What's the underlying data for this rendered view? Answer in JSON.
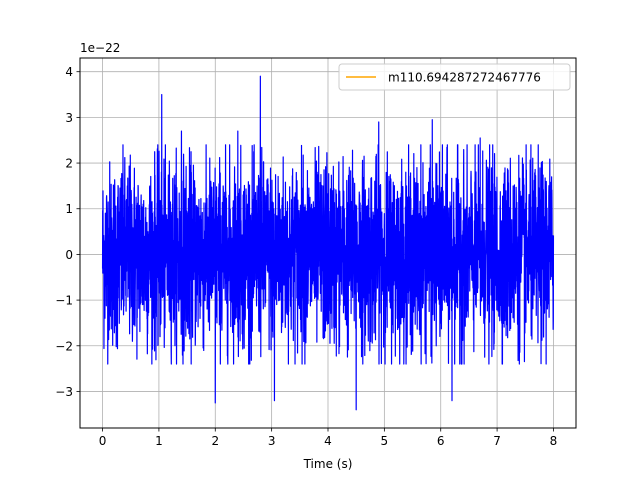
{
  "chart_data": {
    "type": "line",
    "title": "",
    "xlabel": "Time (s)",
    "ylabel": "",
    "y_scale_label": "1e−22",
    "xlim": [
      -0.4,
      8.4
    ],
    "ylim": [
      -3.8,
      4.3
    ],
    "xticks": [
      0,
      1,
      2,
      3,
      4,
      5,
      6,
      7,
      8
    ],
    "xtick_labels": [
      "0",
      "1",
      "2",
      "3",
      "4",
      "5",
      "6",
      "7",
      "8"
    ],
    "yticks": [
      -3,
      -2,
      -1,
      0,
      1,
      2,
      3,
      4
    ],
    "ytick_labels": [
      "−3",
      "−2",
      "−1",
      "0",
      "1",
      "2",
      "3",
      "4"
    ],
    "grid": true,
    "legend": {
      "placement": "top-right",
      "entries": [
        "m110.694287272467776"
      ]
    },
    "series": [
      {
        "name": "m110.694287272467776",
        "color": "#ffa500",
        "x": [],
        "y": []
      },
      {
        "color": "#0000ff",
        "x_range": [
          0,
          8
        ],
        "noise_amplitude_typical": 1.0,
        "peaks": [
          {
            "x": 1.05,
            "y": 3.5
          },
          {
            "x": 1.4,
            "y": 2.7
          },
          {
            "x": 2.8,
            "y": 3.9
          },
          {
            "x": 2.4,
            "y": 2.7
          },
          {
            "x": 2.0,
            "y": -3.25
          },
          {
            "x": 3.05,
            "y": -3.2
          },
          {
            "x": 4.5,
            "y": -3.4
          },
          {
            "x": 4.9,
            "y": 2.9
          },
          {
            "x": 5.85,
            "y": 2.95
          },
          {
            "x": 6.7,
            "y": 2.55
          },
          {
            "x": 6.2,
            "y": -3.2
          }
        ]
      }
    ]
  }
}
